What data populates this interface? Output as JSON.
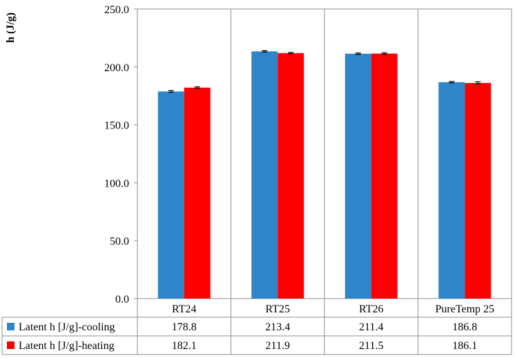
{
  "chart_data": {
    "type": "bar",
    "ylabel": "h (J/g)",
    "ylim": [
      0,
      250
    ],
    "yticks": [
      0,
      50,
      100,
      150,
      200,
      250
    ],
    "ytick_labels": [
      "0.0",
      "50.0",
      "100.0",
      "150.0",
      "200.0",
      "250.0"
    ],
    "categories": [
      "RT24",
      "RT25",
      "RT26",
      "PureTemp 25"
    ],
    "series": [
      {
        "name": "Latent h [J/g]-cooling",
        "color": "#2E86C8",
        "values": [
          178.8,
          213.4,
          211.4,
          186.8
        ],
        "value_labels": [
          "178.8",
          "213.4",
          "211.4",
          "186.8"
        ],
        "errors": [
          0.8,
          0.6,
          0.6,
          0.6
        ]
      },
      {
        "name": "Latent h [J/g]-heating",
        "color": "#FF0000",
        "values": [
          182.1,
          211.9,
          211.5,
          186.1
        ],
        "value_labels": [
          "182.1",
          "211.9",
          "211.5",
          "186.1"
        ],
        "errors": [
          0.7,
          0.6,
          0.6,
          1.0
        ]
      }
    ],
    "legend": "data table below plot",
    "grid": "vertical category separators"
  }
}
